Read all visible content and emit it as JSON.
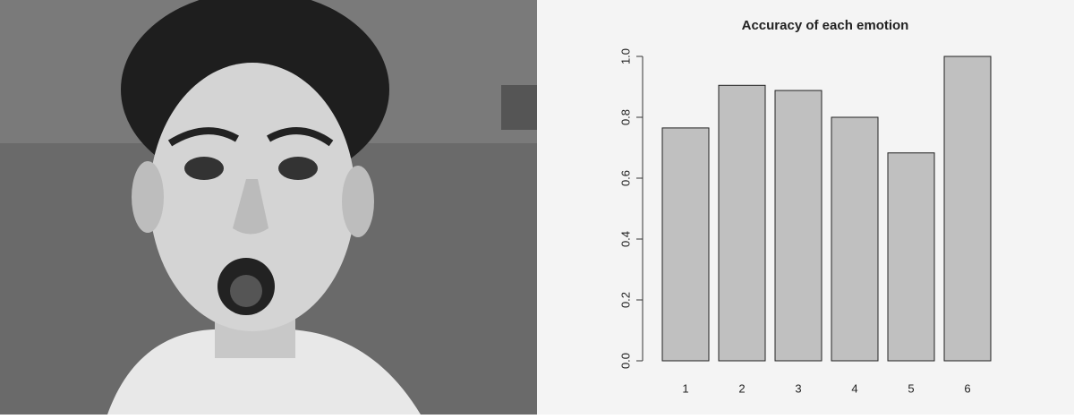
{
  "chart_data": {
    "type": "bar",
    "title": "Accuracy of each emotion",
    "categories": [
      "1",
      "2",
      "3",
      "4",
      "5",
      "6"
    ],
    "values": [
      0.765,
      0.905,
      0.888,
      0.8,
      0.683,
      1.0
    ],
    "color": "#c0c0c0",
    "ylim": [
      0,
      1
    ],
    "yticks": [
      {
        "value": 0,
        "label": "0.0"
      },
      0.2,
      0.4,
      0.6,
      0.8,
      {
        "value": 1,
        "label": "1.0"
      }
    ]
  }
}
